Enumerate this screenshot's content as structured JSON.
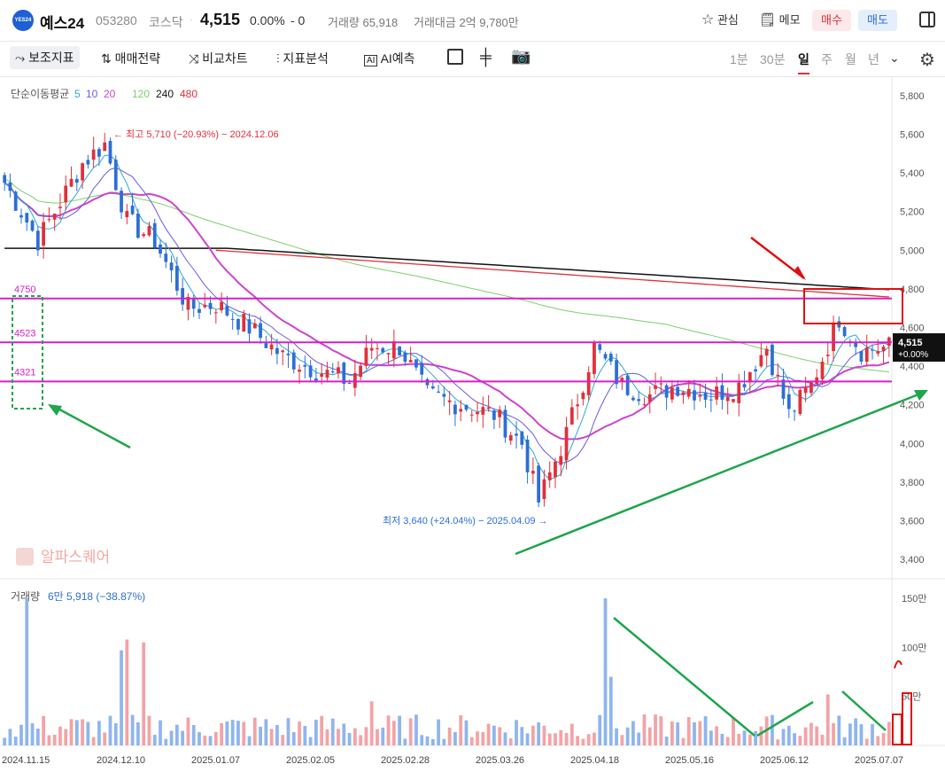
{
  "stock": {
    "logo_text": "YES24",
    "name": "예스24",
    "code": "053280",
    "market": "코스닥",
    "price": "4,515",
    "change_pct": "0.00%",
    "change": "- 0",
    "volume": "거래량 65,918",
    "amount": "거래대금 2억 9,780만"
  },
  "top_actions": {
    "watch": "관심",
    "memo": "메모",
    "buy": "매수",
    "sell": "매도"
  },
  "toolbar": {
    "indicators": "보조지표",
    "strategy": "매매전략",
    "compare": "비교차트",
    "analysis": "지표분석",
    "ai": "AI예측",
    "periods": [
      "1분",
      "30분",
      "일",
      "주",
      "월",
      "년"
    ],
    "selected_period": "일"
  },
  "chart_data": {
    "type": "line",
    "ma_legend": {
      "title": "단순이동평균",
      "items": [
        {
          "label": "5",
          "color": "#29a8d8"
        },
        {
          "label": "10",
          "color": "#6a5ae0"
        },
        {
          "label": "20",
          "color": "#cc44cc"
        },
        {
          "label": "120",
          "color": "#7ccf6a"
        },
        {
          "label": "240",
          "color": "#111111"
        },
        {
          "label": "480",
          "color": "#e0303a"
        }
      ]
    },
    "y_ticks": [
      "5,800",
      "5,600",
      "5,400",
      "5,200",
      "5,000",
      "4,800",
      "4,600",
      "4,400",
      "4,200",
      "4,000",
      "3,800",
      "3,600",
      "3,400"
    ],
    "ylim": [
      3300,
      5900
    ],
    "x_ticks": [
      "2024.11.15",
      "2024.12.10",
      "2025.01.07",
      "2025.02.05",
      "2025.02.28",
      "2025.03.26",
      "2025.04.18",
      "2025.05.16",
      "2025.06.12",
      "2025.07.07"
    ],
    "high_label": "최고 5,710 (−20.93%) − 2024.12.06",
    "low_label": "최저 3,640 (+24.04%) − 2025.04.09",
    "current_price": "4,515",
    "current_change": "+0.00%",
    "horizontal_lines": [
      {
        "label": "4750",
        "value": 4750
      },
      {
        "label": "4523",
        "value": 4523
      },
      {
        "label": "4321",
        "value": 4321
      }
    ],
    "close_keypoints": [
      [
        0,
        5350
      ],
      [
        6,
        5050
      ],
      [
        10,
        5250
      ],
      [
        14,
        5450
      ],
      [
        18,
        5550
      ],
      [
        22,
        5150
      ],
      [
        27,
        5050
      ],
      [
        33,
        4700
      ],
      [
        38,
        4720
      ],
      [
        44,
        4600
      ],
      [
        50,
        4450
      ],
      [
        56,
        4380
      ],
      [
        62,
        4320
      ],
      [
        66,
        4500
      ],
      [
        71,
        4500
      ],
      [
        76,
        4250
      ],
      [
        82,
        4200
      ],
      [
        88,
        4150
      ],
      [
        93,
        4000
      ],
      [
        96,
        3700
      ],
      [
        101,
        4050
      ],
      [
        106,
        4500
      ],
      [
        111,
        4300
      ],
      [
        116,
        4250
      ],
      [
        121,
        4300
      ],
      [
        127,
        4250
      ],
      [
        132,
        4300
      ],
      [
        137,
        4500
      ],
      [
        141,
        4150
      ],
      [
        145,
        4300
      ],
      [
        150,
        4650
      ],
      [
        154,
        4480
      ],
      [
        159,
        4500
      ]
    ],
    "n_candles": 160,
    "watermark": "알파스퀘어",
    "volume": {
      "label": "거래량",
      "value_label": "6만 5,918 (−38.87%)",
      "y_ticks": [
        "150만",
        "100만",
        "50만"
      ],
      "ylim": [
        0,
        1600000
      ],
      "spikes": [
        [
          4,
          1500000
        ],
        [
          21,
          970000
        ],
        [
          22,
          1080000
        ],
        [
          25,
          1050000
        ],
        [
          66,
          450000
        ],
        [
          108,
          1500000
        ],
        [
          109,
          700000
        ],
        [
          148,
          520000
        ]
      ]
    }
  }
}
